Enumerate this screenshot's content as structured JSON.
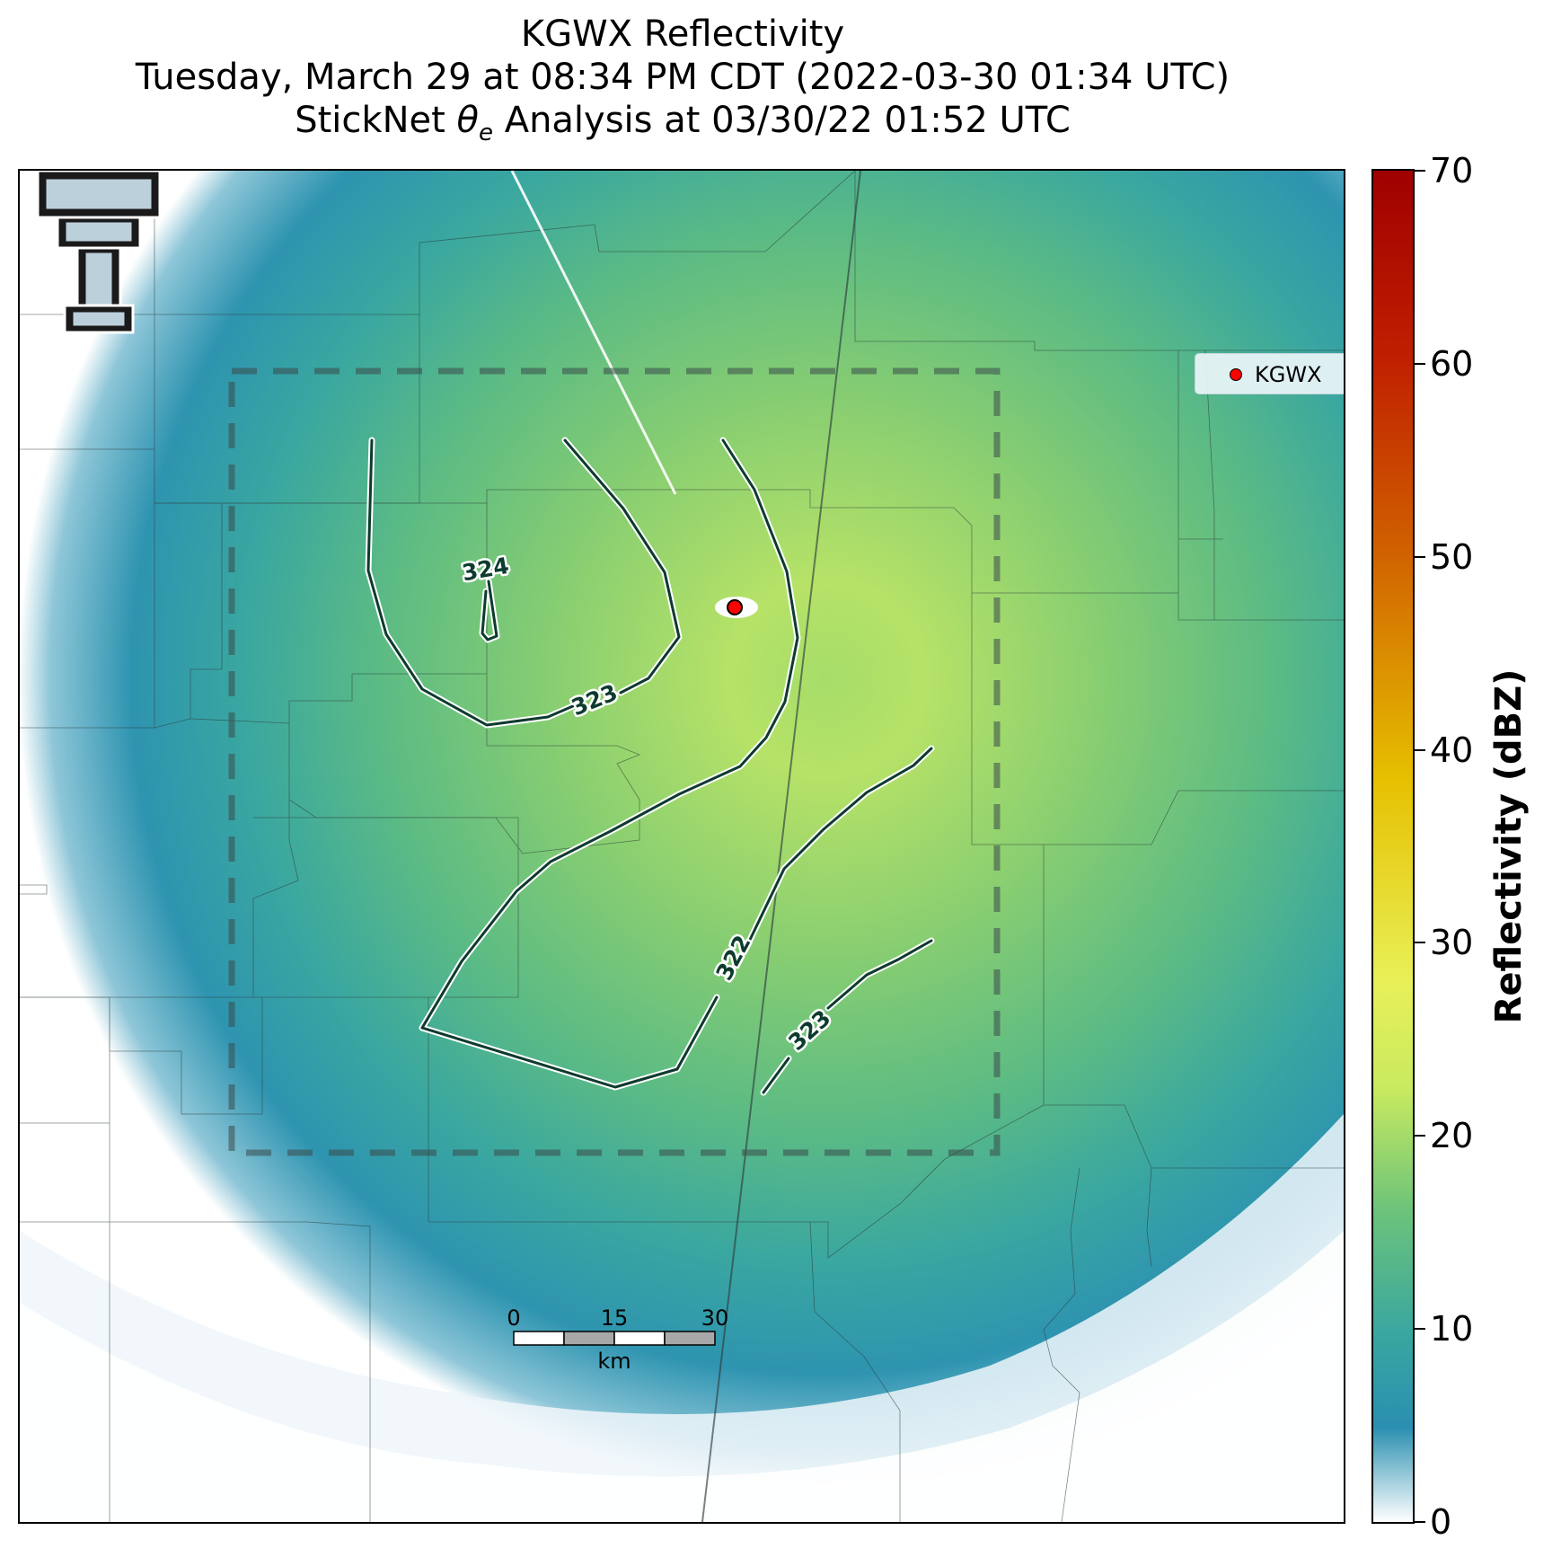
{
  "title": {
    "line1": "KGWX Reflectivity",
    "line2": "Tuesday, March 29 at 08:34 PM CDT (2022-03-30 01:34 UTC)",
    "line3_prefix": "StickNet ",
    "line3_theta": "θ",
    "line3_sub": "e",
    "line3_suffix": " Analysis at 03/30/22 01:52 UTC"
  },
  "legend": {
    "label": "KGWX",
    "marker_color": "#ff0000"
  },
  "colorbar": {
    "title": "Reflectivity (dBZ)",
    "ticks": [
      "0",
      "10",
      "20",
      "30",
      "40",
      "50",
      "60",
      "70"
    ],
    "range": [
      0,
      70
    ]
  },
  "contours": [
    {
      "label": "324"
    },
    {
      "label": "323"
    },
    {
      "label": "322"
    },
    {
      "label": "323"
    }
  ],
  "scale_bar": {
    "labels": [
      "0",
      "15",
      "30"
    ],
    "unit": "km"
  },
  "colors": {
    "contour": "#0d3b2e",
    "radar_teal": "#3aa7a0",
    "radar_green": "#8fd36a",
    "site": "#ff0000"
  }
}
